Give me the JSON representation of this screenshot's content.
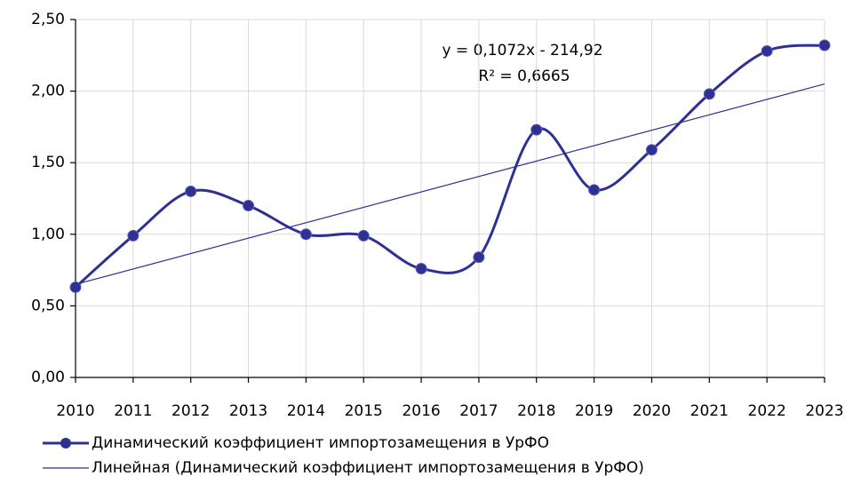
{
  "chart_data": {
    "type": "line",
    "x": [
      2010,
      2011,
      2012,
      2013,
      2014,
      2015,
      2016,
      2017,
      2018,
      2019,
      2020,
      2021,
      2022,
      2023
    ],
    "series": [
      {
        "name": "Динамический коэффициент импортозамещения в УрФО",
        "color": "#2e3192",
        "values": [
          0.63,
          0.99,
          1.3,
          1.2,
          1.0,
          0.99,
          0.76,
          0.84,
          1.73,
          1.31,
          1.59,
          1.98,
          2.28,
          2.32
        ]
      },
      {
        "name": "Линейная (Динамический коэффициент импортозамещения в УрФО)",
        "color": "#2e3192",
        "x": [
          2010,
          2023
        ],
        "values": [
          0.65,
          2.05
        ]
      }
    ],
    "annotations": [
      "y = 0,1072x - 214,92",
      "R² = 0,6665"
    ],
    "xlim": [
      2010,
      2023
    ],
    "xticks": [
      2010,
      2011,
      2012,
      2013,
      2014,
      2015,
      2016,
      2017,
      2018,
      2019,
      2020,
      2021,
      2022,
      2023
    ],
    "ylim": [
      0,
      2.5
    ],
    "yticks": [
      {
        "value": 0,
        "label": "0,00"
      },
      {
        "value": 0.5,
        "label": "0,50"
      },
      {
        "value": 1,
        "label": "1,00"
      },
      {
        "value": 1.5,
        "label": "1,50"
      },
      {
        "value": 2,
        "label": "2,00"
      },
      {
        "value": 2.5,
        "label": "2,50"
      }
    ],
    "grid": true,
    "legend": "bottom"
  }
}
